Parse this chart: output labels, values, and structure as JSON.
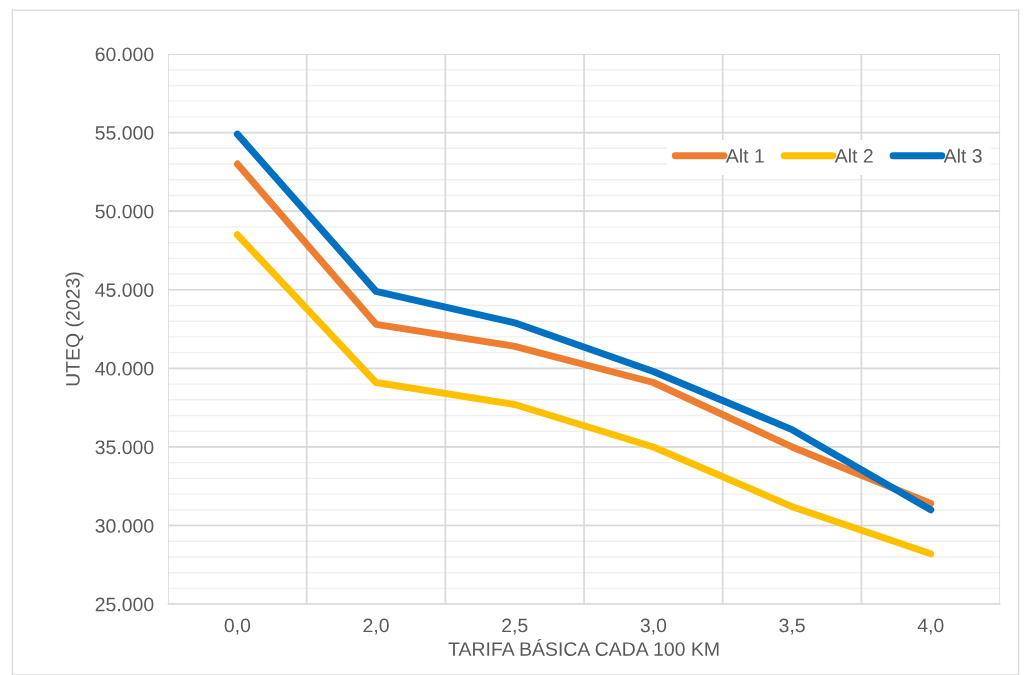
{
  "chart_data": {
    "type": "line",
    "xlabel": "TARIFA BÁSICA CADA 100 KM",
    "ylabel": "UTEQ (2023)",
    "categories": [
      "0,0",
      "2,0",
      "2,5",
      "3,0",
      "3,5",
      "4,0"
    ],
    "series": [
      {
        "name": "Alt 1",
        "color": "#ed7d31",
        "values": [
          53000,
          42800,
          41400,
          39100,
          35000,
          31400
        ]
      },
      {
        "name": "Alt 2",
        "color": "#ffc000",
        "values": [
          48500,
          39100,
          37700,
          35000,
          31200,
          28200
        ]
      },
      {
        "name": "Alt 3",
        "color": "#0070c0",
        "values": [
          54900,
          44900,
          42900,
          39800,
          36100,
          31000
        ]
      }
    ],
    "ylim": [
      25000,
      60000
    ],
    "yticks": [
      {
        "value": 25000,
        "label": "25.000"
      },
      {
        "value": 30000,
        "label": "30.000"
      },
      {
        "value": 35000,
        "label": "35.000"
      },
      {
        "value": 40000,
        "label": "40.000"
      },
      {
        "value": 45000,
        "label": "45.000"
      },
      {
        "value": 50000,
        "label": "50.000"
      },
      {
        "value": 55000,
        "label": "55.000"
      },
      {
        "value": 60000,
        "label": "60.000"
      }
    ],
    "grid": true,
    "legend": "top right",
    "marker": "none",
    "line_style": "solid"
  }
}
